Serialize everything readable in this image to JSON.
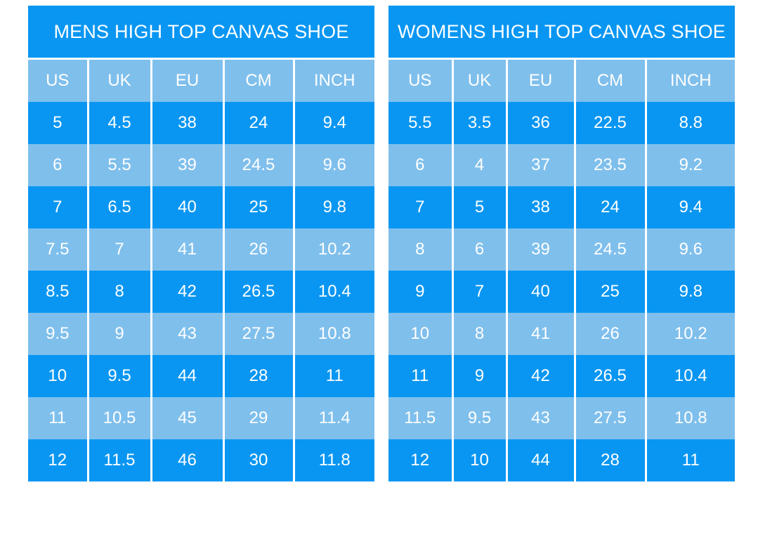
{
  "colors": {
    "dark_blue": "#0996F2",
    "light_blue": "#7FBFEC",
    "text": "#FFFFFF",
    "background": "#FFFFFF"
  },
  "chart_data": [
    {
      "type": "table",
      "title": "MENS HIGH TOP CANVAS SHOE",
      "columns": [
        "US",
        "UK",
        "EU",
        "CM",
        "INCH"
      ],
      "rows": [
        [
          "5",
          "4.5",
          "38",
          "24",
          "9.4"
        ],
        [
          "6",
          "5.5",
          "39",
          "24.5",
          "9.6"
        ],
        [
          "7",
          "6.5",
          "40",
          "25",
          "9.8"
        ],
        [
          "7.5",
          "7",
          "41",
          "26",
          "10.2"
        ],
        [
          "8.5",
          "8",
          "42",
          "26.5",
          "10.4"
        ],
        [
          "9.5",
          "9",
          "43",
          "27.5",
          "10.8"
        ],
        [
          "10",
          "9.5",
          "44",
          "28",
          "11"
        ],
        [
          "11",
          "10.5",
          "45",
          "29",
          "11.4"
        ],
        [
          "12",
          "11.5",
          "46",
          "30",
          "11.8"
        ]
      ],
      "layout_hints": {
        "row_striping": "alternating dark/light starting dark",
        "grid": "white vertical dividers between columns only"
      }
    },
    {
      "type": "table",
      "title": "WOMENS HIGH TOP CANVAS SHOE",
      "columns": [
        "US",
        "UK",
        "EU",
        "CM",
        "INCH"
      ],
      "rows": [
        [
          "5.5",
          "3.5",
          "36",
          "22.5",
          "8.8"
        ],
        [
          "6",
          "4",
          "37",
          "23.5",
          "9.2"
        ],
        [
          "7",
          "5",
          "38",
          "24",
          "9.4"
        ],
        [
          "8",
          "6",
          "39",
          "24.5",
          "9.6"
        ],
        [
          "9",
          "7",
          "40",
          "25",
          "9.8"
        ],
        [
          "10",
          "8",
          "41",
          "26",
          "10.2"
        ],
        [
          "11",
          "9",
          "42",
          "26.5",
          "10.4"
        ],
        [
          "11.5",
          "9.5",
          "43",
          "27.5",
          "10.8"
        ],
        [
          "12",
          "10",
          "44",
          "28",
          "11"
        ]
      ],
      "layout_hints": {
        "row_striping": "alternating dark/light starting dark",
        "grid": "white vertical dividers between columns only"
      }
    }
  ]
}
